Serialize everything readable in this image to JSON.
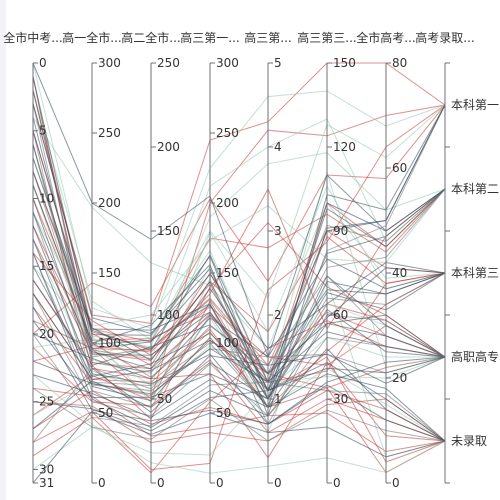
{
  "chart_data": {
    "type": "parallel",
    "axes": [
      {
        "name": "全市中考...",
        "type": "value",
        "min": 0,
        "max": 31,
        "inverse": true,
        "ticks": [
          "0",
          "5",
          "10",
          "15",
          "20",
          "25",
          "30",
          "31"
        ],
        "tick_values": [
          0,
          5,
          10,
          15,
          20,
          25,
          30,
          31
        ]
      },
      {
        "name": "高一全市...",
        "type": "value",
        "min": 0,
        "max": 300,
        "ticks": [
          "300",
          "250",
          "200",
          "150",
          "100",
          "50",
          "0"
        ],
        "tick_values": [
          300,
          250,
          200,
          150,
          100,
          50,
          0
        ]
      },
      {
        "name": "高二全市...",
        "type": "value",
        "min": 0,
        "max": 250,
        "ticks": [
          "250",
          "200",
          "150",
          "100",
          "50",
          "0"
        ],
        "tick_values": [
          250,
          200,
          150,
          100,
          50,
          0
        ]
      },
      {
        "name": "高三第一...",
        "type": "value",
        "min": 0,
        "max": 300,
        "ticks": [
          "300",
          "250",
          "200",
          "150",
          "100",
          "50",
          "0"
        ],
        "tick_values": [
          300,
          250,
          200,
          150,
          100,
          50,
          0
        ]
      },
      {
        "name": "高三第...",
        "type": "value",
        "min": 0,
        "max": 5,
        "ticks": [
          "5",
          "4",
          "3",
          "2",
          "1",
          "0"
        ],
        "tick_values": [
          5,
          4,
          3,
          2,
          1,
          0
        ]
      },
      {
        "name": "高三第三...",
        "type": "value",
        "min": 0,
        "max": 150,
        "ticks": [
          "150",
          "120",
          "90",
          "60",
          "30",
          "0"
        ],
        "tick_values": [
          150,
          120,
          90,
          60,
          30,
          0
        ]
      },
      {
        "name": "全市高考...",
        "type": "value",
        "min": 0,
        "max": 80,
        "ticks": [
          "80",
          "60",
          "40",
          "20",
          "0"
        ],
        "tick_values": [
          80,
          60,
          40,
          20,
          0
        ]
      },
      {
        "name": "高考录取...",
        "type": "category",
        "categories": [
          "本科第一",
          "本科第二",
          "本科第三",
          "高职高专",
          "未录取"
        ]
      }
    ],
    "series": [
      {
        "values": [
          1,
          86,
          68,
          120,
          1.3,
          34,
          2,
          "未录取"
        ],
        "color": "#c23531"
      },
      {
        "values": [
          3,
          120,
          95,
          245,
          4.3,
          150,
          80,
          "本科第一"
        ],
        "color": "#c23531"
      },
      {
        "values": [
          12,
          96,
          79,
          142,
          1.1,
          45,
          4,
          "未录取"
        ],
        "color": "#c23531"
      },
      {
        "values": [
          19,
          96,
          50,
          200,
          4.2,
          124,
          70,
          "本科第一"
        ],
        "color": "#c23531"
      },
      {
        "values": [
          28,
          51,
          8,
          14,
          2.3,
          86,
          64,
          "本科第一"
        ],
        "color": "#c23531"
      },
      {
        "values": [
          5,
          108,
          80,
          132,
          1.4,
          88,
          38,
          "本科第三"
        ],
        "color": "#c23531"
      },
      {
        "values": [
          22,
          98,
          78,
          135,
          3.5,
          55,
          47,
          "本科第二"
        ],
        "color": "#c23531"
      },
      {
        "values": [
          17,
          74,
          60,
          108,
          0.9,
          47,
          34,
          "本科第三"
        ],
        "color": "#c23531"
      },
      {
        "values": [
          14,
          116,
          76,
          126,
          1.5,
          42,
          30,
          "高职高专"
        ],
        "color": "#c23531"
      },
      {
        "values": [
          20,
          143,
          105,
          203,
          2.4,
          110,
          58,
          "本科第一"
        ],
        "color": "#c23531"
      },
      {
        "values": [
          26,
          77,
          49,
          140,
          3.1,
          70,
          32,
          "高职高专"
        ],
        "color": "#c23531"
      },
      {
        "values": [
          8,
          107,
          70,
          150,
          1.2,
          100,
          45,
          "本科第二"
        ],
        "color": "#c23531"
      },
      {
        "values": [
          24,
          62,
          28,
          40,
          0.8,
          25,
          6,
          "未录取"
        ],
        "color": "#c23531"
      },
      {
        "values": [
          6,
          82,
          62,
          78,
          0.3,
          43,
          9,
          "未录取"
        ],
        "color": "#c23531"
      },
      {
        "values": [
          29,
          47,
          6,
          58,
          1.6,
          58,
          26,
          "高职高专"
        ],
        "color": "#c23531"
      },
      {
        "values": [
          16,
          84,
          38,
          130,
          1.0,
          64,
          31,
          "高职高专"
        ],
        "color": "#c23531"
      },
      {
        "values": [
          10,
          102,
          86,
          122,
          1.2,
          40,
          38,
          "本科第三"
        ],
        "color": "#c23531"
      },
      {
        "values": [
          21,
          58,
          46,
          88,
          0.6,
          30,
          12,
          "未录取"
        ],
        "color": "#c23531"
      },
      {
        "values": [
          2,
          110,
          84,
          175,
          2.8,
          96,
          44,
          "本科第二"
        ],
        "color": "#c23531"
      },
      {
        "values": [
          27,
          66,
          35,
          54,
          0.7,
          33,
          14,
          "未录取"
        ],
        "color": "#c23531"
      },
      {
        "values": [
          13,
          93,
          73,
          144,
          1.8,
          90,
          41,
          "本科第三"
        ],
        "color": "#c23531"
      },
      {
        "values": [
          25,
          55,
          24,
          36,
          0.5,
          28,
          16,
          "未录取"
        ],
        "color": "#c23531"
      },
      {
        "values": [
          9,
          100,
          63,
          110,
          0.9,
          34,
          22,
          "高职高专"
        ],
        "color": "#c23531"
      },
      {
        "values": [
          18,
          71,
          52,
          102,
          1.3,
          61,
          28,
          "高职高专"
        ],
        "color": "#c23531"
      },
      {
        "values": [
          0,
          125,
          92,
          225,
          4.6,
          140,
          68,
          "本科第一"
        ],
        "color": "#91c7ae"
      },
      {
        "values": [
          4,
          197,
          131,
          141,
          1.6,
          100,
          39,
          "本科第三"
        ],
        "color": "#91c7ae"
      },
      {
        "values": [
          7,
          105,
          81,
          212,
          4.0,
          130,
          46,
          "本科第二"
        ],
        "color": "#91c7ae"
      },
      {
        "values": [
          9,
          90,
          87,
          166,
          1.2,
          111,
          22,
          "高职高专"
        ],
        "color": "#91c7ae"
      },
      {
        "values": [
          11,
          112,
          100,
          173,
          3.3,
          80,
          42,
          "本科第二"
        ],
        "color": "#91c7ae"
      },
      {
        "values": [
          15,
          105,
          48,
          146,
          0.6,
          72,
          5,
          "未录取"
        ],
        "color": "#91c7ae"
      },
      {
        "values": [
          23,
          42,
          12,
          7,
          0.2,
          9,
          2,
          "未录取"
        ],
        "color": "#91c7ae"
      },
      {
        "values": [
          19,
          97,
          58,
          179,
          1.8,
          106,
          37,
          "本科第三"
        ],
        "color": "#91c7ae"
      },
      {
        "values": [
          26,
          72,
          52,
          98,
          1.2,
          38,
          20,
          "高职高专"
        ],
        "color": "#91c7ae"
      },
      {
        "values": [
          30,
          40,
          18,
          20,
          1.1,
          52,
          24,
          "高职高专"
        ],
        "color": "#91c7ae"
      },
      {
        "values": [
          2,
          130,
          85,
          180,
          2.2,
          128,
          62,
          "本科第一"
        ],
        "color": "#91c7ae"
      },
      {
        "values": [
          13,
          80,
          54,
          118,
          0.9,
          41,
          15,
          "未录取"
        ],
        "color": "#91c7ae"
      },
      {
        "values": [
          21,
          103,
          74,
          190,
          3.8,
          118,
          52,
          "本科第二"
        ],
        "color": "#91c7ae"
      },
      {
        "values": [
          6,
          88,
          65,
          155,
          1.0,
          64,
          30,
          "高职高专"
        ],
        "color": "#91c7ae"
      },
      {
        "values": [
          0,
          200,
          145,
          205,
          1.5,
          110,
          48,
          "本科第二"
        ],
        "color": "#2f4554"
      },
      {
        "values": [
          1,
          106,
          88,
          162,
          1.0,
          100,
          48,
          "本科第二"
        ],
        "color": "#2f4554"
      },
      {
        "values": [
          2,
          100,
          94,
          156,
          0.8,
          91,
          50,
          "本科第一"
        ],
        "color": "#2f4554"
      },
      {
        "values": [
          3,
          118,
          89,
          153,
          1.1,
          82,
          47,
          "本科第二"
        ],
        "color": "#2f4554"
      },
      {
        "values": [
          4,
          96,
          84,
          149,
          1.6,
          64,
          42,
          "本科第三"
        ],
        "color": "#2f4554"
      },
      {
        "values": [
          5,
          110,
          91,
          128,
          0.9,
          103,
          52,
          "本科第一"
        ],
        "color": "#2f4554"
      },
      {
        "values": [
          6,
          94,
          68,
          139,
          1.3,
          69,
          36,
          "本科第三"
        ],
        "color": "#2f4554"
      },
      {
        "values": [
          7,
          109,
          79,
          163,
          1.2,
          90,
          50,
          "本科第一"
        ],
        "color": "#2f4554"
      },
      {
        "values": [
          8,
          111,
          73,
          144,
          1.1,
          68,
          33,
          "本科第三"
        ],
        "color": "#2f4554"
      },
      {
        "values": [
          9,
          99,
          85,
          127,
          1.0,
          72,
          36,
          "本科第三"
        ],
        "color": "#2f4554"
      },
      {
        "values": [
          10,
          84,
          81,
          113,
          1.3,
          57,
          32,
          "高职高专"
        ],
        "color": "#2f4554"
      },
      {
        "values": [
          11,
          92,
          76,
          122,
          1.1,
          98,
          45,
          "本科第二"
        ],
        "color": "#2f4554"
      },
      {
        "values": [
          12,
          78,
          59,
          92,
          0.7,
          36,
          23,
          "高职高专"
        ],
        "color": "#2f4554"
      },
      {
        "values": [
          13,
          69,
          49,
          104,
          0.9,
          57,
          28,
          "高职高专"
        ],
        "color": "#2f4554"
      },
      {
        "values": [
          14,
          60,
          33,
          66,
          0.8,
          48,
          14,
          "未录取"
        ],
        "color": "#2f4554"
      },
      {
        "values": [
          15,
          76,
          71,
          107,
          1.1,
          43,
          16,
          "未录取"
        ],
        "color": "#2f4554"
      },
      {
        "values": [
          16,
          82,
          42,
          91,
          1.4,
          46,
          19,
          "高职高专"
        ],
        "color": "#2f4554"
      },
      {
        "values": [
          17,
          74,
          67,
          102,
          1.2,
          59,
          41,
          "本科第三"
        ],
        "color": "#2f4554"
      },
      {
        "values": [
          18,
          52,
          37,
          52,
          0.7,
          35,
          12,
          "未录取"
        ],
        "color": "#2f4554"
      },
      {
        "values": [
          19,
          61,
          51,
          78,
          1.0,
          74,
          30,
          "高职高专"
        ],
        "color": "#2f4554"
      },
      {
        "values": [
          20,
          89,
          62,
          118,
          1.5,
          80,
          37,
          "本科第三"
        ],
        "color": "#2f4554"
      },
      {
        "values": [
          22,
          71,
          53,
          96,
          1.2,
          54,
          26,
          "高职高专"
        ],
        "color": "#2f4554"
      },
      {
        "values": [
          23,
          64,
          39,
          74,
          0.9,
          39,
          18,
          "未录取"
        ],
        "color": "#2f4554"
      },
      {
        "values": [
          25,
          53,
          31,
          61,
          1.1,
          41,
          21,
          "高职高专"
        ],
        "color": "#2f4554"
      },
      {
        "values": [
          27,
          73,
          45,
          86,
          1.0,
          62,
          25,
          "高职高专"
        ],
        "color": "#2f4554"
      },
      {
        "values": [
          31,
          51,
          29,
          50,
          0.6,
          20,
          5,
          "未录取"
        ],
        "color": "#2f4554"
      },
      {
        "values": [
          1,
          90,
          80,
          131,
          1.3,
          92,
          46,
          "本科第二"
        ],
        "color": "#6e7074"
      },
      {
        "values": [
          3,
          86,
          66,
          121,
          1.2,
          77,
          43,
          "本科第二"
        ],
        "color": "#6e7074"
      },
      {
        "values": [
          5,
          72,
          58,
          100,
          0.9,
          83,
          49,
          "本科第一"
        ],
        "color": "#6e7074"
      },
      {
        "values": [
          8,
          95,
          74,
          128,
          0.7,
          60,
          31,
          "高职高专"
        ],
        "color": "#6e7074"
      },
      {
        "values": [
          11,
          70,
          55,
          96,
          1.5,
          46,
          21,
          "高职高专"
        ],
        "color": "#6e7074"
      },
      {
        "values": [
          14,
          66,
          45,
          120,
          1.0,
          66,
          34,
          "本科第三"
        ],
        "color": "#6e7074"
      },
      {
        "values": [
          17,
          58,
          40,
          85,
          0.8,
          52,
          26,
          "高职高专"
        ],
        "color": "#6e7074"
      },
      {
        "values": [
          20,
          47,
          34,
          70,
          1.2,
          33,
          17,
          "未录取"
        ],
        "color": "#6e7074"
      },
      {
        "values": [
          24,
          40,
          26,
          60,
          0.5,
          26,
          10,
          "未录取"
        ],
        "color": "#6e7074"
      },
      {
        "values": [
          28,
          82,
          56,
          112,
          1.4,
          74,
          28,
          "高职高专"
        ],
        "color": "#6e7074"
      }
    ]
  }
}
